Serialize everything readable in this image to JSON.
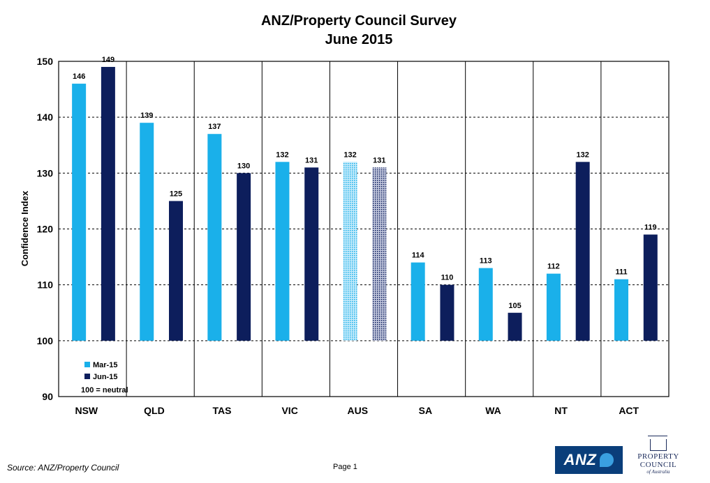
{
  "chart_data": {
    "type": "bar",
    "title": "ANZ/Property Council Survey",
    "subtitle": "June 2015",
    "ylabel": "Confidence Index",
    "xlabel": "",
    "ylim": [
      90,
      150
    ],
    "yticks": [
      90,
      100,
      110,
      120,
      130,
      140,
      150
    ],
    "categories": [
      "NSW",
      "QLD",
      "TAS",
      "VIC",
      "AUS",
      "SA",
      "WA",
      "NT",
      "ACT"
    ],
    "series": [
      {
        "name": "Mar-15",
        "color": "#1ab0ea",
        "values": [
          146,
          139,
          137,
          132,
          132,
          114,
          113,
          112,
          111
        ]
      },
      {
        "name": "Jun-15",
        "color": "#0d1e5c",
        "values": [
          149,
          125,
          130,
          131,
          131,
          110,
          105,
          132,
          119
        ]
      }
    ],
    "highlight_category": "AUS",
    "highlight_style": "hatched",
    "baseline": 100,
    "legend": {
      "position": "bottom-left",
      "note": "100 = neutral"
    },
    "grid": "horizontal-dashed"
  },
  "footer": {
    "source": "Source: ANZ/Property Council",
    "page": "Page 1"
  },
  "logos": {
    "anz": "ANZ",
    "property_council_line1": "PROPERTY",
    "property_council_line2": "COUNCIL",
    "property_council_line3": "of Australia"
  }
}
